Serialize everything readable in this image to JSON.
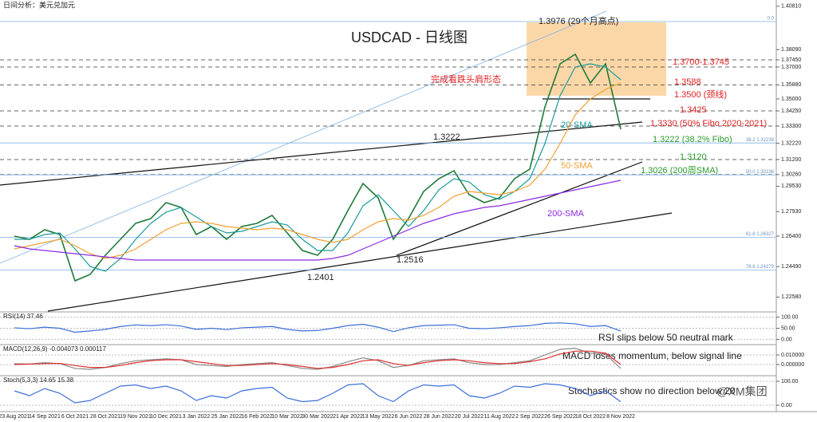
{
  "header": {
    "title": "日间分析：美元兑加元",
    "watermark": "@XM集团"
  },
  "chart_data": [
    {
      "type": "line",
      "title": "USDCAD - 日线图",
      "categories": [
        "23 Aug 2021",
        null,
        "14 Sep 2021",
        null,
        "6 Oct 2021",
        null,
        "28 Oct 2021",
        null,
        "19 Nov 2021",
        null,
        "10 Dec 2021",
        null,
        "3 Jan 2022",
        null,
        "25 Jan 2022",
        null,
        "16 Feb 2022",
        null,
        "10 Mar 2022",
        null,
        "30 Mar 2022",
        null,
        "21 Apr 2022",
        null,
        "13 May 2022",
        null,
        "6 Jun 2022",
        null,
        "28 Jun 2022",
        null,
        "20 Jul 2022",
        null,
        "11 Aug 2022",
        null,
        "2 Sep 2022",
        null,
        "26 Sep 2022",
        null,
        "18 Oct 2022",
        null,
        "8 Nov 2022"
      ],
      "series": [
        {
          "color": "#1f7a3a",
          "values": [
            1.264,
            1.262,
            1.268,
            1.265,
            1.236,
            1.24,
            1.252,
            1.262,
            1.272,
            1.275,
            1.285,
            1.282,
            1.265,
            1.27,
            1.262,
            1.27,
            1.272,
            1.277,
            1.266,
            1.255,
            1.252,
            1.262,
            1.28,
            1.297,
            1.288,
            1.262,
            1.275,
            1.292,
            1.3,
            1.305,
            1.29,
            1.285,
            1.288,
            1.3,
            1.306,
            1.345,
            1.372,
            1.378,
            1.36,
            1.372,
            1.331
          ]
        },
        {
          "name": "20-SMA",
          "color": "#1a9a9a",
          "values": [
            1.262,
            1.262,
            1.265,
            1.266,
            1.256,
            1.245,
            1.242,
            1.25,
            1.262,
            1.272,
            1.279,
            1.282,
            1.276,
            1.27,
            1.266,
            1.267,
            1.27,
            1.273,
            1.271,
            1.262,
            1.255,
            1.255,
            1.266,
            1.283,
            1.29,
            1.28,
            1.27,
            1.28,
            1.293,
            1.3,
            1.298,
            1.29,
            1.287,
            1.292,
            1.3,
            1.322,
            1.352,
            1.37,
            1.372,
            1.37,
            1.362
          ]
        },
        {
          "name": "50-SMA",
          "color": "#f0a030",
          "values": [
            1.256,
            1.258,
            1.26,
            1.262,
            1.258,
            1.253,
            1.25,
            1.252,
            1.256,
            1.262,
            1.268,
            1.272,
            1.273,
            1.272,
            1.27,
            1.269,
            1.268,
            1.269,
            1.268,
            1.265,
            1.262,
            1.26,
            1.262,
            1.268,
            1.273,
            1.275,
            1.274,
            1.277,
            1.282,
            1.289,
            1.292,
            1.291,
            1.29,
            1.292,
            1.296,
            1.306,
            1.322,
            1.34,
            1.35,
            1.356,
            1.36
          ]
        },
        {
          "name": "200-SMA",
          "color": "#8a2be2",
          "values": [
            1.258,
            1.256,
            1.255,
            1.254,
            1.253,
            1.252,
            1.251,
            1.25,
            1.249,
            1.249,
            1.249,
            1.249,
            1.249,
            1.249,
            1.249,
            1.249,
            1.249,
            1.249,
            1.249,
            1.249,
            1.249,
            1.25,
            1.252,
            1.256,
            1.26,
            1.264,
            1.268,
            1.272,
            1.275,
            1.278,
            1.28,
            1.282,
            1.283,
            1.285,
            1.287,
            1.289,
            1.291,
            1.293,
            1.295,
            1.297,
            1.299
          ]
        }
      ],
      "ylim": [
        1.217,
        1.412
      ],
      "yticks": [
        {
          "value": 1.4081,
          "label": "1.40810"
        },
        {
          "value": 1.3809,
          "label": "1.38090"
        },
        {
          "value": 1.3745,
          "label": "1.37450"
        },
        {
          "value": 1.37,
          "label": "1.37000"
        },
        {
          "value": 1.3588,
          "label": "1.35880"
        },
        {
          "value": 1.35,
          "label": "1.35000"
        },
        {
          "value": 1.3425,
          "label": "1.34250"
        },
        {
          "value": 1.333,
          "label": "1.33300"
        },
        {
          "value": 1.3222,
          "label": "1.32220"
        },
        {
          "value": 1.312,
          "label": "1.31200"
        },
        {
          "value": 1.3026,
          "label": "1.30260"
        },
        {
          "value": 1.2953,
          "label": "1.29530"
        },
        {
          "value": 1.2793,
          "label": "1.27930"
        },
        {
          "value": 1.264,
          "label": "1.26400"
        },
        {
          "value": 1.2449,
          "label": "1.24490"
        },
        {
          "value": 1.2258,
          "label": "1.22580"
        }
      ],
      "level_lines": [
        1.3745,
        1.37,
        1.3588,
        1.3425,
        1.333,
        1.312,
        1.3026
      ],
      "neckline": 1.35,
      "fib_levels": [
        {
          "value": 1.3985,
          "label": "0.0"
        },
        {
          "value": 1.3224,
          "label": "38.2 1.32239"
        },
        {
          "value": 1.3024,
          "label": "50.0 1.30236"
        },
        {
          "value": 1.2633,
          "label": "61.8 1.26327"
        },
        {
          "value": 1.2428,
          "label": "78.6 1.24279"
        }
      ],
      "annotations": [
        {
          "text": "1.3976 (29个月高点)",
          "color": "#222"
        },
        {
          "text": "1.3700-1.3745",
          "color": "#e02020"
        },
        {
          "text": "1.3588",
          "color": "#e02020"
        },
        {
          "text": "1.3500 (颈线)",
          "color": "#e02020"
        },
        {
          "text": "1.3425",
          "color": "#e02020"
        },
        {
          "text": "1.3330 (50% Fibo 2020-2021)",
          "color": "#e02020"
        },
        {
          "text": "1.3222 (38.2% Fibo)",
          "color": "#2a9a2a"
        },
        {
          "text": "1.3120",
          "color": "#2a9a2a"
        },
        {
          "text": "1.3026 (200周SMA)",
          "color": "#2a9a2a"
        },
        {
          "text": "完成看跌头肩形态",
          "color": "#e02020"
        },
        {
          "text": "1.3222",
          "color": "#222"
        },
        {
          "text": "1.2401",
          "color": "#222"
        },
        {
          "text": "1.2516",
          "color": "#222"
        }
      ]
    },
    {
      "type": "line",
      "title": "RSI(14) 37.46",
      "note": "RSI slips below 50 neutral mark",
      "series": [
        {
          "color": "#3b6fd8",
          "values": [
            52,
            48,
            55,
            50,
            32,
            38,
            45,
            58,
            65,
            62,
            66,
            60,
            45,
            50,
            44,
            52,
            55,
            58,
            45,
            38,
            40,
            50,
            62,
            68,
            55,
            35,
            52,
            62,
            64,
            66,
            50,
            48,
            52,
            58,
            62,
            72,
            74,
            70,
            58,
            62,
            37.46
          ]
        }
      ],
      "ylim": [
        -20,
        120
      ],
      "yticks": [
        {
          "value": 100,
          "label": "100.00"
        },
        {
          "value": 50,
          "label": "50.00"
        },
        {
          "value": 0,
          "label": "0.00"
        }
      ]
    },
    {
      "type": "line",
      "title": "MACD(12,26,9) -0.004073 0.000117",
      "note": "MACD loses momentum, below signal line",
      "series": [
        {
          "color": "#888",
          "values": [
            0.001,
            0.0005,
            0.002,
            0.001,
            -0.004,
            -0.005,
            -0.003,
            0.001,
            0.004,
            0.005,
            0.006,
            0.005,
            0.0,
            -0.001,
            -0.002,
            0.0,
            0.001,
            0.002,
            -0.001,
            -0.004,
            -0.005,
            -0.002,
            0.003,
            0.007,
            0.004,
            -0.003,
            -0.001,
            0.004,
            0.005,
            0.006,
            0.002,
            0.0,
            0.0,
            0.002,
            0.004,
            0.01,
            0.016,
            0.017,
            0.012,
            0.011,
            -0.004073
          ]
        },
        {
          "color": "#e03030",
          "values": [
            0.0,
            0.0005,
            0.001,
            0.0012,
            -0.001,
            -0.003,
            -0.003,
            -0.001,
            0.002,
            0.004,
            0.005,
            0.005,
            0.003,
            0.001,
            -0.001,
            -0.001,
            0.0,
            0.001,
            0.0,
            -0.002,
            -0.004,
            -0.003,
            0.0,
            0.004,
            0.005,
            0.001,
            -0.001,
            0.002,
            0.004,
            0.005,
            0.004,
            0.002,
            0.001,
            0.001,
            0.003,
            0.006,
            0.011,
            0.014,
            0.014,
            0.012,
            0.000117
          ]
        }
      ],
      "ylim": [
        -0.01,
        0.02
      ],
      "yticks": [
        {
          "value": 0.01,
          "label": "0.010000"
        },
        {
          "value": 0,
          "label": "0.000000"
        }
      ]
    },
    {
      "type": "line",
      "title": "Stoch(5,3,3) 14.65 15.38",
      "note": "Stochastics show no direction below 20",
      "series": [
        {
          "color": "#3b6fd8",
          "values": [
            60,
            40,
            70,
            50,
            10,
            20,
            50,
            80,
            85,
            70,
            80,
            60,
            20,
            40,
            30,
            60,
            70,
            75,
            30,
            15,
            20,
            50,
            85,
            90,
            40,
            15,
            60,
            85,
            80,
            85,
            40,
            30,
            50,
            80,
            75,
            90,
            85,
            70,
            40,
            60,
            14.65
          ]
        }
      ],
      "ylim": [
        -20,
        120
      ],
      "yticks": [
        {
          "value": 100,
          "label": "100.00"
        },
        {
          "value": 0,
          "label": "0.00"
        }
      ]
    }
  ]
}
